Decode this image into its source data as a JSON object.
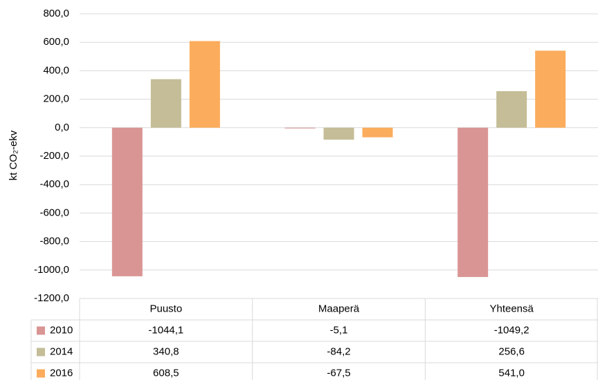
{
  "chart_data": {
    "type": "bar",
    "y_axis_label": "kt CO₂-ekv",
    "categories": [
      "Puusto",
      "Maaperä",
      "Yhteensä"
    ],
    "series": [
      {
        "name": "2010",
        "color": "#d99594",
        "values": [
          -1044.1,
          -5.1,
          -1049.2
        ],
        "value_labels": [
          "-1044,1",
          "-5,1",
          "-1049,2"
        ]
      },
      {
        "name": "2014",
        "color": "#c4bd97",
        "values": [
          340.8,
          -84.2,
          256.6
        ],
        "value_labels": [
          "340,8",
          "-84,2",
          "256,6"
        ]
      },
      {
        "name": "2016",
        "color": "#fbac5c",
        "values": [
          608.5,
          -67.5,
          541.0
        ],
        "value_labels": [
          "608,5",
          "-67,5",
          "541,0"
        ]
      }
    ],
    "ylim": [
      -1200,
      800
    ],
    "yticks": [
      {
        "value": 800,
        "label": "800,0"
      },
      {
        "value": 600,
        "label": "600,0"
      },
      {
        "value": 400,
        "label": "400,0"
      },
      {
        "value": 200,
        "label": "200,0"
      },
      {
        "value": 0,
        "label": "0,0"
      },
      {
        "value": -200,
        "label": "-200,0"
      },
      {
        "value": -400,
        "label": "-400,0"
      },
      {
        "value": -600,
        "label": "-600,0"
      },
      {
        "value": -800,
        "label": "-800,0"
      },
      {
        "value": -1000,
        "label": "-1000,0"
      },
      {
        "value": -1200,
        "label": "-1200,0"
      }
    ],
    "grid": true,
    "legend": "table"
  }
}
